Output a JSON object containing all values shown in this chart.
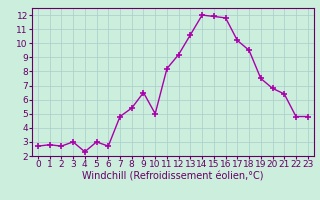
{
  "x": [
    0,
    1,
    2,
    3,
    4,
    5,
    6,
    7,
    8,
    9,
    10,
    11,
    12,
    13,
    14,
    15,
    16,
    17,
    18,
    19,
    20,
    21,
    22,
    23
  ],
  "y": [
    2.7,
    2.8,
    2.7,
    3.0,
    2.3,
    3.0,
    2.7,
    4.8,
    5.4,
    6.5,
    5.0,
    8.2,
    9.2,
    10.6,
    12.0,
    11.9,
    11.8,
    10.2,
    9.5,
    7.5,
    6.8,
    6.4,
    4.8,
    4.8
  ],
  "line_color": "#aa00aa",
  "marker": "+",
  "marker_size": 4,
  "marker_lw": 1.2,
  "line_width": 1.0,
  "bg_color": "#cceedd",
  "grid_color": "#aacccc",
  "xlabel": "Windchill (Refroidissement éolien,°C)",
  "xlim": [
    -0.5,
    23.5
  ],
  "ylim": [
    2,
    12.5
  ],
  "yticks": [
    2,
    3,
    4,
    5,
    6,
    7,
    8,
    9,
    10,
    11,
    12
  ],
  "xticks": [
    0,
    1,
    2,
    3,
    4,
    5,
    6,
    7,
    8,
    9,
    10,
    11,
    12,
    13,
    14,
    15,
    16,
    17,
    18,
    19,
    20,
    21,
    22,
    23
  ],
  "tick_color": "#660066",
  "label_color": "#660066",
  "spine_color": "#660066",
  "xlabel_fontsize": 7,
  "tick_fontsize": 6.5
}
